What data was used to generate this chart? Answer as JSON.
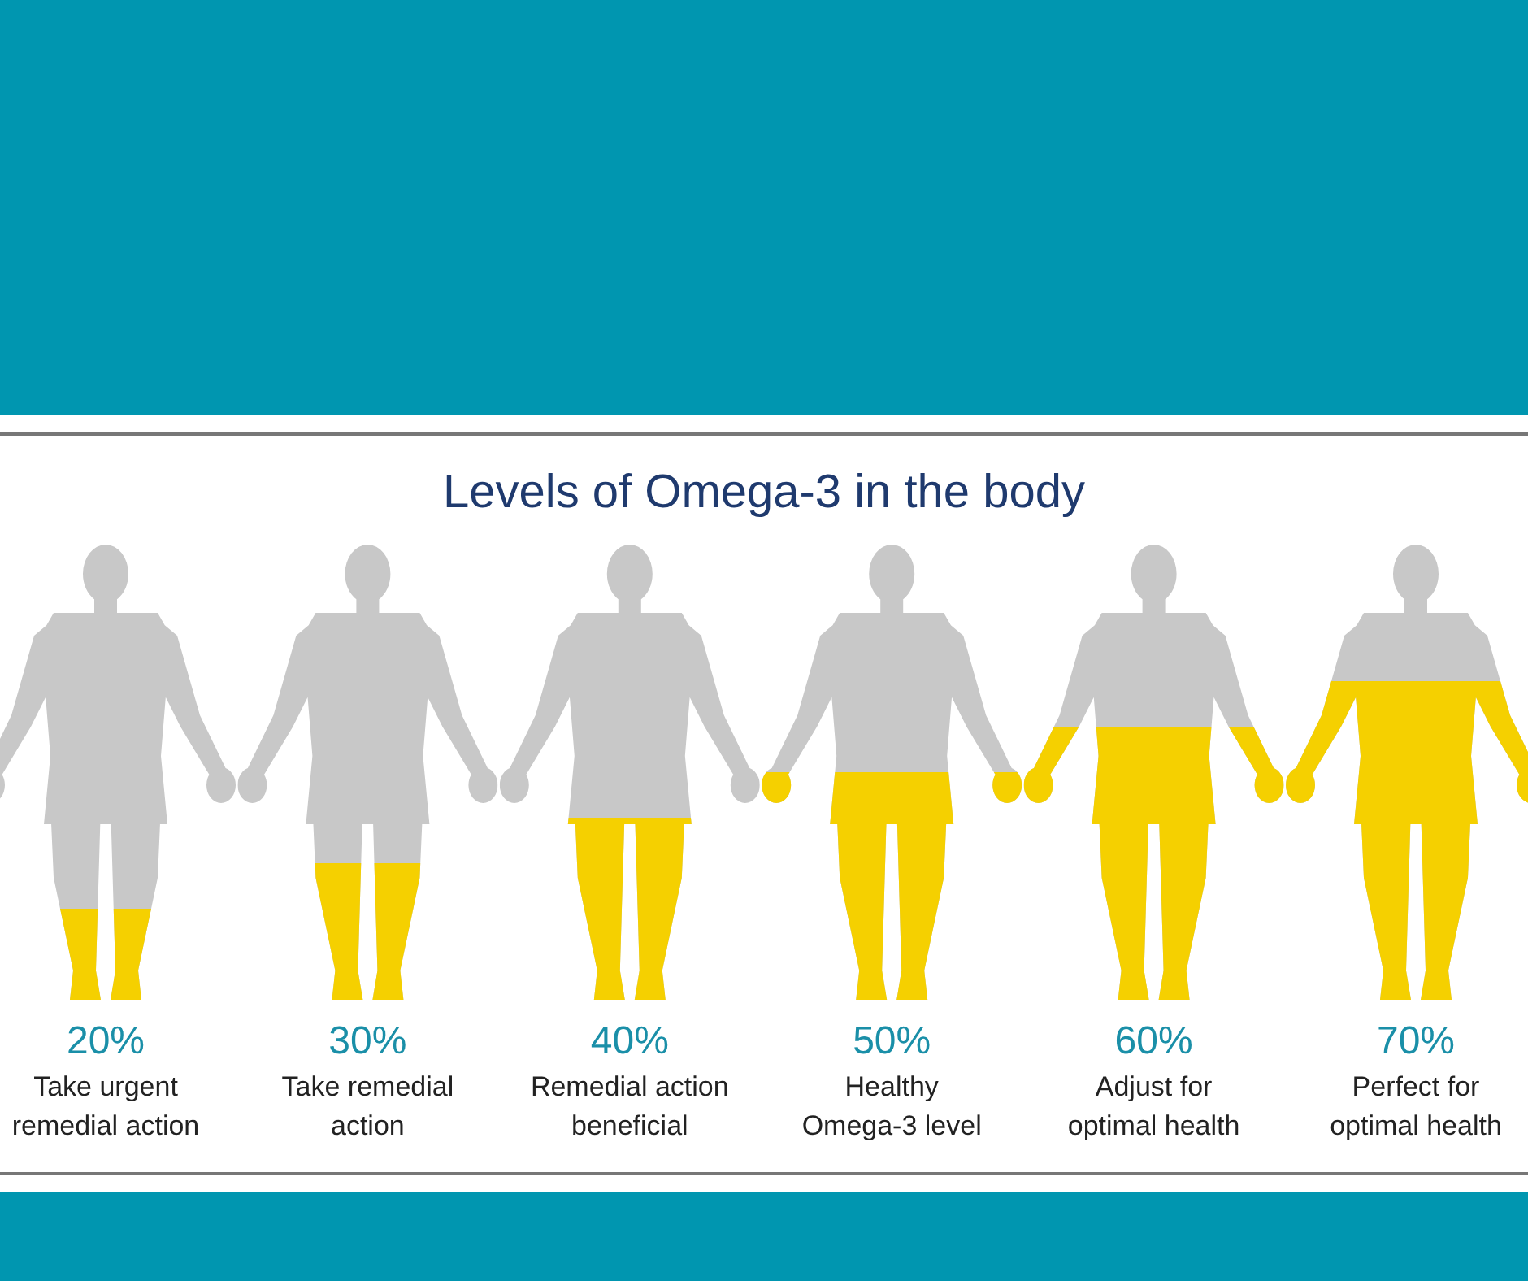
{
  "chart_data": {
    "type": "bar",
    "title": "Levels of Omega-3 in the body",
    "categories": [
      "Take urgent\nremedial action",
      "Take remedial\naction",
      "Remedial action\nbeneficial",
      "Healthy\nOmega-3 level",
      "Adjust for\noptimal health",
      "Perfect for\noptimal health"
    ],
    "values": [
      20,
      30,
      40,
      50,
      60,
      70
    ],
    "value_labels": [
      "20%",
      "30%",
      "40%",
      "50%",
      "60%",
      "70%"
    ],
    "color": "#f5d000",
    "ylim": [
      0,
      100
    ]
  }
}
